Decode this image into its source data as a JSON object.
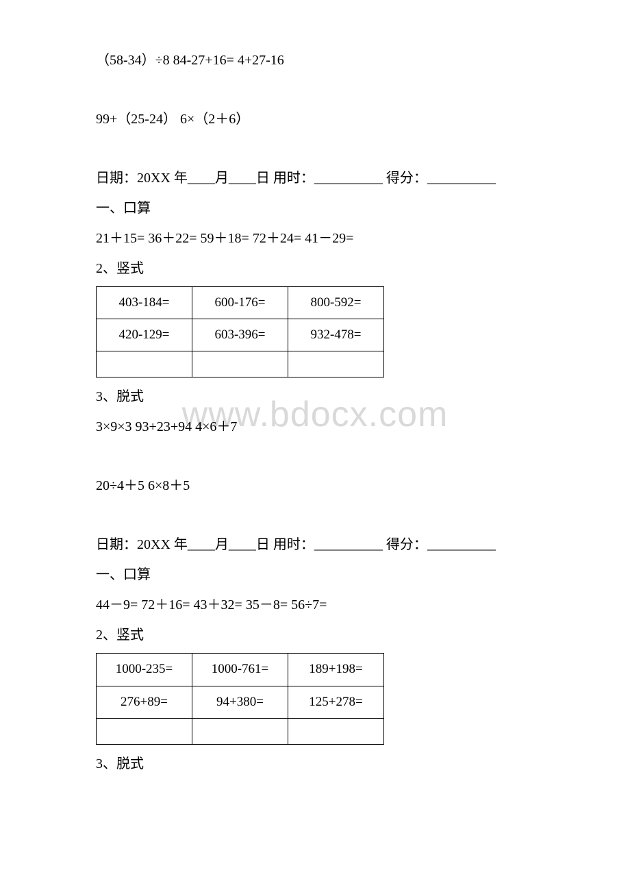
{
  "watermark": "www.bdocx.com",
  "block1": {
    "expr1": "（58-34）÷8  84-27+16= 4+27-16",
    "expr2": " 99+（25-24） 6×（2＋6）"
  },
  "section1": {
    "dateLine": "日期：20XX 年____月____日 用时：__________ 得分：__________",
    "h1": "一、口算",
    "oral": "21＋15= 36＋22= 59＋18= 72＋24= 41－29=",
    "h2": "2、竖式",
    "table": {
      "r1c1": "403-184=",
      "r1c2": "600-176=",
      "r1c3": "800-592=",
      "r2c1": "420-129=",
      "r2c2": "603-396=",
      "r2c3": "932-478=",
      "r3c1": "",
      "r3c2": "",
      "r3c3": ""
    },
    "h3": "3、脱式",
    "expr1": " 3×9×3 93+23+94 4×6＋7",
    "expr2": "20÷4＋5 6×8＋5"
  },
  "section2": {
    "dateLine": "日期：20XX 年____月____日 用时：__________ 得分：__________",
    "h1": "一、口算",
    "oral": "44－9= 72＋16= 43＋32= 35－8= 56÷7=",
    "h2": "2、竖式",
    "table": {
      "r1c1": "1000-235=",
      "r1c2": "1000-761=",
      "r1c3": "189+198=",
      "r2c1": "276+89=",
      "r2c2": "94+380=",
      "r2c3": "125+278=",
      "r3c1": "",
      "r3c2": "",
      "r3c3": ""
    },
    "h3": "3、脱式"
  }
}
